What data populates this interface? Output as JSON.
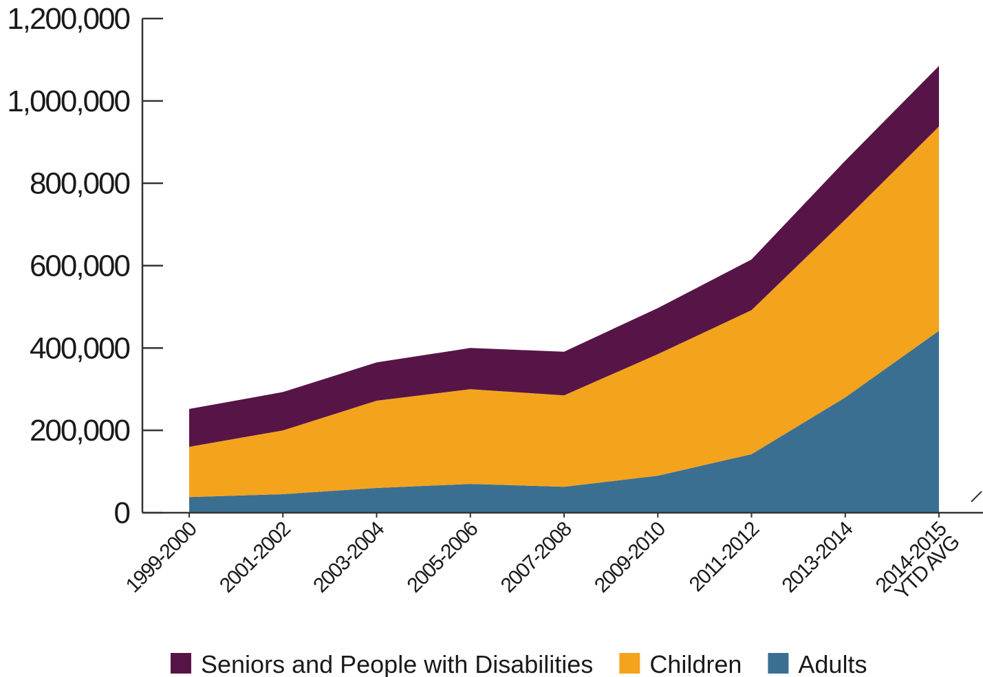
{
  "chart_data": {
    "type": "area",
    "stacked": true,
    "categories": [
      "1999-2000",
      "2001-2002",
      "2003-2004",
      "2005-2006",
      "2007-2008",
      "2009-2010",
      "2011-2012",
      "2013-2014",
      "2014-2015 YTD AVG"
    ],
    "category_lines": [
      [
        "1999-2000"
      ],
      [
        "2001-2002"
      ],
      [
        "2003-2004"
      ],
      [
        "2005-2006"
      ],
      [
        "2007-2008"
      ],
      [
        "2009-2010"
      ],
      [
        "2011-2012"
      ],
      [
        "2013-2014"
      ],
      [
        "2014-2015",
        "YTD AVG"
      ]
    ],
    "series": [
      {
        "name": "Adults",
        "color": "#3a6f92",
        "values": [
          38000,
          45000,
          60000,
          70000,
          63000,
          90000,
          142000,
          280000,
          442000
        ]
      },
      {
        "name": "Children",
        "color": "#f4a31d",
        "values": [
          122000,
          155000,
          212000,
          230000,
          222000,
          295000,
          350000,
          432000,
          496000
        ]
      },
      {
        "name": "Seniors and People with Disabilities",
        "color": "#571547",
        "values": [
          92000,
          93000,
          93000,
          100000,
          106000,
          112000,
          123000,
          143000,
          147000
        ]
      }
    ],
    "legend_order": [
      "Seniors and People with Disabilities",
      "Children",
      "Adults"
    ],
    "yticks": [
      "0",
      "200,000",
      "400,000",
      "600,000",
      "800,000",
      "1,000,000",
      "1,200,000"
    ],
    "ytick_values": [
      0,
      200000,
      400000,
      600000,
      800000,
      1000000,
      1200000
    ],
    "ylim": [
      0,
      1200000
    ],
    "grid": false,
    "legend_position": "bottom"
  }
}
